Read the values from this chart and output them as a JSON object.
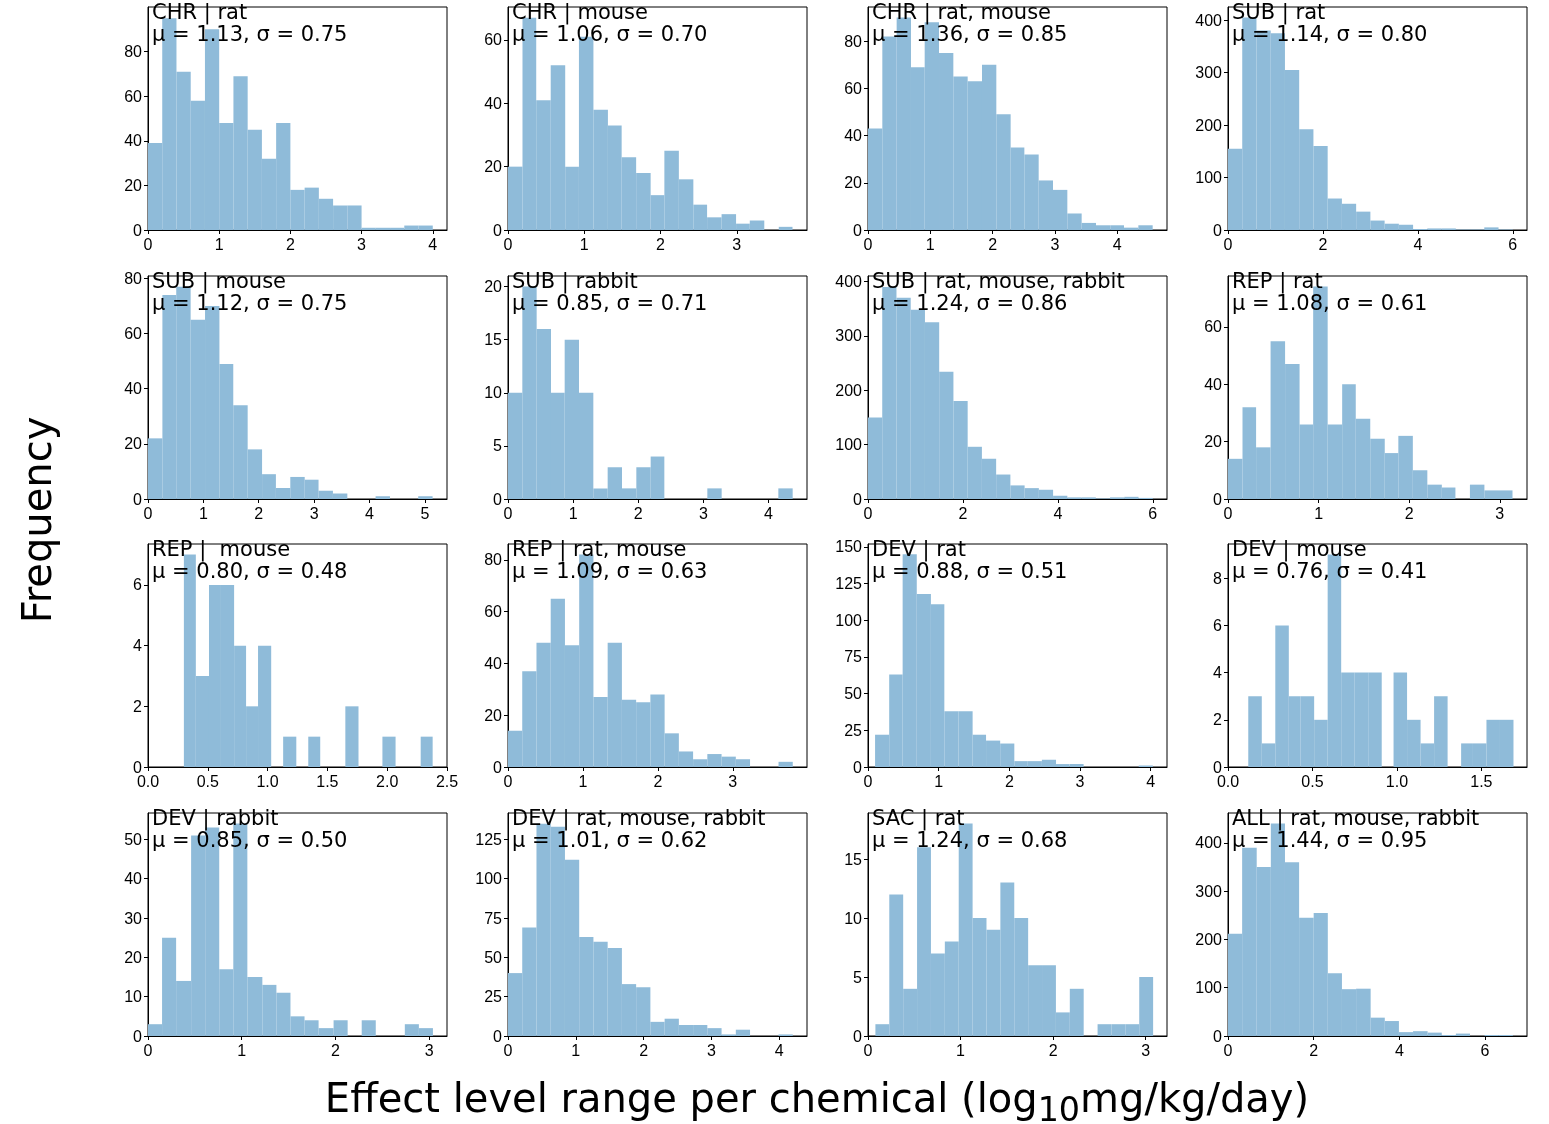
{
  "chart_data": [
    {
      "type": "histogram",
      "title": "CHR | rat",
      "annotations": [
        "μ = 1.13, σ = 0.75"
      ],
      "xlabel": "Effect level range per chemical (log$_{10}$mg/kg/day)",
      "ylabel": "Frequency",
      "color": "#8fbbd9",
      "grid": false,
      "bins": [
        0,
        0.2,
        0.4,
        0.6,
        0.8,
        1,
        1.2,
        1.4,
        1.6,
        1.8,
        2,
        2.2,
        2.4,
        2.6,
        2.8,
        3,
        3.2,
        3.4,
        3.6,
        3.8,
        4
      ],
      "values": [
        39,
        95,
        71,
        58,
        90,
        48,
        69,
        45,
        32,
        48,
        18,
        19,
        14,
        11,
        11,
        1,
        1,
        1,
        2,
        2
      ],
      "xlim": [
        0,
        4.2
      ],
      "xticks": [
        0,
        1,
        2,
        3,
        4
      ],
      "ylim": [
        0,
        100
      ],
      "yticks": [
        0,
        20,
        40,
        60,
        80
      ]
    },
    {
      "type": "histogram",
      "title": "CHR | mouse",
      "annotations": [
        "μ = 1.06, σ = 0.70"
      ],
      "color": "#8fbbd9",
      "grid": false,
      "bins": [
        0,
        0.19,
        0.37,
        0.56,
        0.75,
        0.93,
        1.12,
        1.31,
        1.49,
        1.68,
        1.87,
        2.05,
        2.24,
        2.43,
        2.61,
        2.8,
        2.99,
        3.17,
        3.36,
        3.55,
        3.73
      ],
      "values": [
        20,
        67,
        41,
        52,
        20,
        61,
        38,
        33,
        23,
        18,
        11,
        25,
        16,
        8,
        4,
        5,
        2,
        3,
        0,
        1
      ],
      "xlim": [
        0,
        3.92
      ],
      "xticks": [
        0,
        1,
        2,
        3
      ],
      "ylim": [
        0,
        70.4
      ],
      "yticks": [
        0,
        20,
        40,
        60
      ]
    },
    {
      "type": "histogram",
      "title": "CHR | rat, mouse",
      "annotations": [
        "μ = 1.36, σ = 0.85"
      ],
      "color": "#8fbbd9",
      "grid": false,
      "bins": [
        0,
        0.23,
        0.46,
        0.69,
        0.91,
        1.14,
        1.37,
        1.6,
        1.83,
        2.06,
        2.29,
        2.51,
        2.74,
        2.97,
        3.2,
        3.43,
        3.66,
        3.89,
        4.11,
        4.34,
        4.57
      ],
      "values": [
        43,
        82,
        90,
        69,
        88,
        75,
        65,
        63,
        70,
        49,
        35,
        32,
        21,
        17,
        7,
        3,
        2,
        2,
        1,
        2
      ],
      "xlim": [
        0,
        4.8
      ],
      "xticks": [
        0,
        1,
        2,
        3,
        4
      ],
      "ylim": [
        0,
        94.5
      ],
      "yticks": [
        0,
        20,
        40,
        60,
        80
      ]
    },
    {
      "type": "histogram",
      "title": "SUB | rat",
      "annotations": [
        "μ = 1.14, σ = 0.80"
      ],
      "color": "#8fbbd9",
      "grid": false,
      "bins": [
        0,
        0.3,
        0.6,
        0.9,
        1.2,
        1.5,
        1.8,
        2.1,
        2.4,
        2.7,
        3,
        3.3,
        3.6,
        3.9,
        4.2,
        4.5,
        4.8,
        5.1,
        5.4,
        5.7,
        6
      ],
      "values": [
        155,
        405,
        380,
        375,
        305,
        192,
        160,
        60,
        50,
        35,
        18,
        12,
        10,
        2,
        3,
        3,
        1,
        1,
        5,
        1
      ],
      "xlim": [
        0,
        6.3
      ],
      "xticks": [
        0,
        2,
        4,
        6
      ],
      "ylim": [
        0,
        425
      ],
      "yticks": [
        0,
        100,
        200,
        300,
        400
      ]
    },
    {
      "type": "histogram",
      "title": "SUB | mouse",
      "annotations": [
        "μ = 1.12, σ = 0.75"
      ],
      "color": "#8fbbd9",
      "grid": false,
      "bins": [
        0,
        0.26,
        0.51,
        0.77,
        1.03,
        1.29,
        1.54,
        1.8,
        2.06,
        2.31,
        2.57,
        2.83,
        3.08,
        3.34,
        3.6,
        4.11,
        4.37,
        4.88,
        5.14
      ],
      "values": [
        22,
        74,
        77,
        65,
        70,
        49,
        34,
        18,
        9,
        4,
        8,
        7,
        3,
        2,
        0,
        1,
        0,
        1
      ],
      "xlim": [
        0,
        5.4
      ],
      "xticks": [
        0,
        1,
        2,
        3,
        4,
        5
      ],
      "ylim": [
        0,
        80.9
      ],
      "yticks": [
        0,
        20,
        40,
        60,
        80
      ]
    },
    {
      "type": "histogram",
      "title": "SUB | rabbit",
      "annotations": [
        "μ = 0.85, σ = 0.71"
      ],
      "color": "#8fbbd9",
      "grid": false,
      "bins": [
        0,
        0.22,
        0.44,
        0.66,
        0.87,
        1.09,
        1.31,
        1.53,
        1.75,
        1.97,
        2.19,
        2.4,
        3.06,
        3.28,
        4.15,
        4.37
      ],
      "values": [
        10,
        20,
        16,
        10,
        15,
        10,
        1,
        3,
        1,
        3,
        4,
        0,
        1,
        0,
        1
      ],
      "xlim": [
        0,
        4.59
      ],
      "xticks": [
        0,
        1,
        2,
        3,
        4
      ],
      "ylim": [
        0,
        21
      ],
      "yticks": [
        0,
        5,
        10,
        15,
        20
      ]
    },
    {
      "type": "histogram",
      "title": "SUB | rat, mouse, rabbit",
      "annotations": [
        "μ = 1.24, σ = 0.86"
      ],
      "color": "#8fbbd9",
      "grid": false,
      "bins": [
        0,
        0.3,
        0.6,
        0.9,
        1.2,
        1.5,
        1.8,
        2.1,
        2.4,
        2.7,
        3,
        3.3,
        3.6,
        3.9,
        4.2,
        4.5,
        4.8,
        5.1,
        5.4,
        5.7,
        6
      ],
      "values": [
        150,
        390,
        370,
        348,
        325,
        234,
        180,
        96,
        74,
        45,
        25,
        20,
        17,
        6,
        3,
        3,
        1,
        3,
        4,
        2
      ],
      "xlim": [
        0,
        6.3
      ],
      "xticks": [
        0,
        2,
        4,
        6
      ],
      "ylim": [
        0,
        410
      ],
      "yticks": [
        0,
        100,
        200,
        300,
        400
      ]
    },
    {
      "type": "histogram",
      "title": "REP | rat",
      "annotations": [
        "μ = 1.08, σ = 0.61"
      ],
      "color": "#8fbbd9",
      "grid": false,
      "bins": [
        0,
        0.16,
        0.31,
        0.47,
        0.63,
        0.79,
        0.94,
        1.1,
        1.26,
        1.41,
        1.57,
        1.73,
        1.88,
        2.04,
        2.2,
        2.36,
        2.51,
        2.67,
        2.83,
        2.98,
        3.14
      ],
      "values": [
        14,
        32,
        18,
        55,
        47,
        26,
        74,
        26,
        40,
        28,
        21,
        16,
        22,
        10,
        5,
        4,
        0,
        5,
        3,
        3
      ],
      "xlim": [
        0,
        3.3
      ],
      "xticks": [
        0,
        1,
        2,
        3
      ],
      "ylim": [
        0,
        77.7
      ],
      "yticks": [
        0,
        20,
        40,
        60
      ]
    },
    {
      "type": "histogram",
      "title": "REP |  mouse",
      "annotations": [
        "μ = 0.80, σ = 0.48"
      ],
      "color": "#8fbbd9",
      "grid": false,
      "bins": [
        0.3,
        0.4,
        0.51,
        0.61,
        0.72,
        0.82,
        0.92,
        1.03,
        1.13,
        1.24,
        1.34,
        1.44,
        1.65,
        1.76,
        1.96,
        2.07,
        2.28,
        2.38
      ],
      "values": [
        7,
        3,
        6,
        6,
        4,
        2,
        4,
        0,
        1,
        0,
        1,
        0,
        2,
        0,
        1,
        0,
        1
      ],
      "xlim": [
        0,
        2.5
      ],
      "xticks": [
        {
          "value": 0,
          "label": "0.0"
        },
        {
          "value": 0.5,
          "label": "0.5"
        },
        {
          "value": 1,
          "label": "1.0"
        },
        {
          "value": 1.5,
          "label": "1.5"
        },
        {
          "value": 2,
          "label": "2.0"
        },
        {
          "value": 2.5,
          "label": "2.5"
        }
      ],
      "ylim": [
        0,
        7.35
      ],
      "yticks": [
        0,
        2,
        4,
        6
      ]
    },
    {
      "type": "histogram",
      "title": "REP | rat, mouse",
      "annotations": [
        "μ = 1.09, σ = 0.63"
      ],
      "color": "#8fbbd9",
      "grid": false,
      "bins": [
        0,
        0.19,
        0.38,
        0.57,
        0.76,
        0.95,
        1.14,
        1.33,
        1.52,
        1.71,
        1.9,
        2.09,
        2.28,
        2.47,
        2.66,
        2.85,
        3.04,
        3.23,
        3.42,
        3.61,
        3.8
      ],
      "values": [
        14,
        37,
        48,
        65,
        47,
        82,
        27,
        48,
        26,
        25,
        28,
        13,
        6,
        3,
        5,
        4,
        3,
        0,
        0,
        2
      ],
      "xlim": [
        0,
        3.99
      ],
      "xticks": [
        0,
        1,
        2,
        3
      ],
      "ylim": [
        0,
        86.1
      ],
      "yticks": [
        0,
        20,
        40,
        60,
        80
      ]
    },
    {
      "type": "histogram",
      "title": "DEV | rat",
      "annotations": [
        "μ = 0.88, σ = 0.51"
      ],
      "color": "#8fbbd9",
      "grid": false,
      "bins": [
        0.1,
        0.3,
        0.49,
        0.69,
        0.89,
        1.08,
        1.28,
        1.48,
        1.67,
        1.87,
        2.07,
        2.26,
        2.46,
        2.66,
        2.85,
        3.05,
        3.83,
        4.03
      ],
      "values": [
        22,
        63,
        145,
        118,
        111,
        38,
        38,
        22,
        18,
        16,
        4,
        4,
        5,
        2,
        2,
        0,
        1
      ],
      "xlim": [
        0,
        4.23
      ],
      "xticks": [
        0,
        1,
        2,
        3,
        4
      ],
      "ylim": [
        0,
        152
      ],
      "yticks": [
        0,
        25,
        50,
        75,
        100,
        125,
        150
      ]
    },
    {
      "type": "histogram",
      "title": "DEV | mouse",
      "annotations": [
        "μ = 0.76, σ = 0.41"
      ],
      "color": "#8fbbd9",
      "grid": false,
      "bins": [
        0.12,
        0.2,
        0.28,
        0.36,
        0.43,
        0.51,
        0.59,
        0.67,
        0.75,
        0.83,
        0.91,
        0.98,
        1.06,
        1.14,
        1.22,
        1.3,
        1.38,
        1.45,
        1.53,
        1.61,
        1.69
      ],
      "values": [
        3,
        1,
        6,
        3,
        3,
        2,
        9,
        4,
        4,
        4,
        0,
        4,
        2,
        1,
        3,
        0,
        1,
        1,
        2,
        2
      ],
      "xlim": [
        0,
        1.77
      ],
      "xticks": [
        {
          "value": 0,
          "label": "0.0"
        },
        {
          "value": 0.5,
          "label": "0.5"
        },
        {
          "value": 1,
          "label": "1.0"
        },
        {
          "value": 1.5,
          "label": "1.5"
        }
      ],
      "ylim": [
        0,
        9.45
      ],
      "yticks": [
        0,
        2,
        4,
        6,
        8
      ]
    },
    {
      "type": "histogram",
      "title": "DEV | rabbit",
      "annotations": [
        "μ = 0.85, σ = 0.50"
      ],
      "color": "#8fbbd9",
      "grid": false,
      "bins": [
        0,
        0.15,
        0.3,
        0.46,
        0.61,
        0.76,
        0.91,
        1.06,
        1.22,
        1.37,
        1.52,
        1.67,
        1.82,
        1.98,
        2.13,
        2.28,
        2.43,
        2.74,
        2.89,
        3.04
      ],
      "values": [
        3,
        25,
        14,
        51,
        53,
        17,
        54,
        15,
        13,
        11,
        5,
        4,
        2,
        4,
        0,
        4,
        0,
        3,
        2
      ],
      "xlim": [
        0,
        3.19
      ],
      "xticks": [
        0,
        1,
        2,
        3
      ],
      "ylim": [
        0,
        56.7
      ],
      "yticks": [
        0,
        10,
        20,
        30,
        40,
        50
      ]
    },
    {
      "type": "histogram",
      "title": "DEV | rat, mouse, rabbit",
      "annotations": [
        "μ = 1.01, σ = 0.62"
      ],
      "color": "#8fbbd9",
      "grid": false,
      "bins": [
        0,
        0.21,
        0.42,
        0.63,
        0.84,
        1.05,
        1.26,
        1.47,
        1.68,
        1.89,
        2.1,
        2.31,
        2.52,
        2.73,
        2.94,
        3.15,
        3.36,
        3.57,
        3.78,
        3.99,
        4.2
      ],
      "values": [
        40,
        69,
        135,
        133,
        112,
        63,
        60,
        56,
        33,
        31,
        9,
        11,
        7,
        7,
        5,
        1,
        4,
        0,
        0,
        1
      ],
      "xlim": [
        0,
        4.41
      ],
      "xticks": [
        0,
        1,
        2,
        3,
        4
      ],
      "ylim": [
        0,
        141.8
      ],
      "yticks": [
        0,
        25,
        50,
        75,
        100,
        125
      ]
    },
    {
      "type": "histogram",
      "title": "SAC | rat",
      "annotations": [
        "μ = 1.24, σ = 0.68"
      ],
      "color": "#8fbbd9",
      "grid": false,
      "bins": [
        0.08,
        0.23,
        0.38,
        0.53,
        0.68,
        0.83,
        0.98,
        1.13,
        1.28,
        1.43,
        1.58,
        1.73,
        1.88,
        2.03,
        2.18,
        2.33,
        2.48,
        2.63,
        2.78,
        2.93,
        3.08
      ],
      "values": [
        1,
        12,
        4,
        16,
        7,
        8,
        18,
        10,
        9,
        13,
        10,
        6,
        6,
        2,
        4,
        0,
        1,
        1,
        1,
        5
      ],
      "xlim": [
        0,
        3.23
      ],
      "xticks": [
        0,
        1,
        2,
        3
      ],
      "ylim": [
        0,
        18.9
      ],
      "yticks": [
        0,
        5,
        10,
        15
      ]
    },
    {
      "type": "histogram",
      "title": "ALL | rat, mouse, rabbit",
      "annotations": [
        "μ = 1.44, σ = 0.95"
      ],
      "color": "#8fbbd9",
      "grid": false,
      "bins": [
        0,
        0.33,
        0.67,
        1,
        1.33,
        1.66,
        2,
        2.33,
        2.66,
        2.99,
        3.33,
        3.66,
        3.99,
        4.32,
        4.66,
        4.99,
        5.32,
        5.65,
        5.99,
        6.32,
        6.65
      ],
      "values": [
        212,
        390,
        350,
        440,
        360,
        245,
        255,
        130,
        97,
        98,
        38,
        31,
        8,
        10,
        7,
        2,
        5,
        0,
        2,
        2
      ],
      "xlim": [
        0,
        6.98
      ],
      "xticks": [
        0,
        2,
        4,
        6
      ],
      "ylim": [
        0,
        462
      ],
      "yticks": [
        0,
        100,
        200,
        300,
        400
      ]
    }
  ]
}
